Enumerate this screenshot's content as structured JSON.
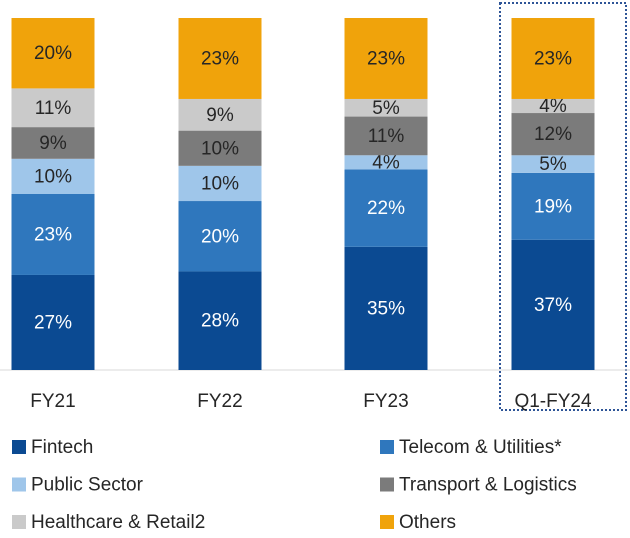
{
  "chart_data": {
    "type": "stacked_bar",
    "categories": [
      "FY21",
      "FY22",
      "FY23",
      "Q1-FY24"
    ],
    "ylim": [
      0,
      100
    ],
    "series": [
      {
        "name": "Fintech",
        "color": "#0b4a92",
        "label_color": "#ffffff",
        "values": [
          27,
          28,
          35,
          37
        ],
        "value_labels": [
          "27%",
          "28%",
          "35%",
          "37%"
        ]
      },
      {
        "name": "Telecom & Utilities*",
        "color": "#2f77bd",
        "label_color": "#ffffff",
        "values": [
          23,
          20,
          22,
          19
        ],
        "value_labels": [
          "23%",
          "20%",
          "22%",
          "19%"
        ]
      },
      {
        "name": "Public Sector",
        "color": "#9fc6ea",
        "label_color": "#262626",
        "values": [
          10,
          10,
          4,
          5
        ],
        "value_labels": [
          "10%",
          "10%",
          "4%",
          "5%"
        ]
      },
      {
        "name": "Transport & Logistics",
        "color": "#7b7b7b",
        "label_color": "#262626",
        "values": [
          9,
          10,
          11,
          12
        ],
        "value_labels": [
          "9%",
          "10%",
          "11%",
          "12%"
        ]
      },
      {
        "name": "Healthcare & Retail2",
        "color": "#cacaca",
        "label_color": "#262626",
        "values": [
          11,
          9,
          5,
          4
        ],
        "value_labels": [
          "11%",
          "9%",
          "5%",
          "4%"
        ]
      },
      {
        "name": "Others",
        "color": "#f0a30b",
        "label_color": "#262626",
        "values": [
          20,
          23,
          23,
          23
        ],
        "value_labels": [
          "20%",
          "23%",
          "23%",
          "23%"
        ]
      }
    ]
  }
}
